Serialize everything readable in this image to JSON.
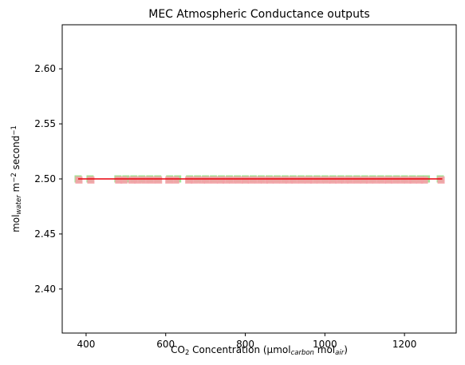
{
  "chart_data": {
    "type": "scatter",
    "title": "MEC Atmospheric Conductance outputs",
    "xlabel": {
      "parts": [
        {
          "t": "CO"
        },
        {
          "t": "2",
          "sub": true
        },
        {
          "t": " Concentration (µmol"
        },
        {
          "t": "carbon",
          "sub": true,
          "italic": true
        },
        {
          "t": " mol"
        },
        {
          "t": "air",
          "sub": true,
          "italic": true
        },
        {
          "t": ")"
        }
      ]
    },
    "ylabel": {
      "parts": [
        {
          "t": "mol"
        },
        {
          "t": "water",
          "sub": true,
          "italic": true
        },
        {
          "t": " m"
        },
        {
          "t": "−2",
          "sup": true
        },
        {
          "t": " second"
        },
        {
          "t": "−1",
          "sup": true
        }
      ]
    },
    "xlim": [
      340,
      1330
    ],
    "ylim": [
      2.36,
      2.64
    ],
    "xticks": [
      400,
      600,
      800,
      1000,
      1200
    ],
    "yticks": [
      2.4,
      2.45,
      2.5,
      2.55,
      2.6
    ],
    "ytick_labels": [
      "2.40",
      "2.45",
      "2.50",
      "2.55",
      "2.60"
    ],
    "grid": false,
    "series": [
      {
        "kind": "scatter",
        "marker": "square",
        "color": "#98e08a",
        "x": [
          380,
          410,
          480,
          500,
          520,
          540,
          560,
          580,
          610,
          630,
          660,
          680,
          700,
          720,
          740,
          760,
          780,
          800,
          820,
          840,
          860,
          880,
          900,
          920,
          940,
          960,
          980,
          1000,
          1020,
          1040,
          1060,
          1080,
          1100,
          1120,
          1140,
          1160,
          1180,
          1200,
          1220,
          1240,
          1255,
          1290
        ],
        "y": [
          2.5,
          2.5,
          2.5,
          2.5,
          2.5,
          2.5,
          2.5,
          2.5,
          2.5,
          2.5,
          2.5,
          2.5,
          2.5,
          2.5,
          2.5,
          2.5,
          2.5,
          2.5,
          2.5,
          2.5,
          2.5,
          2.5,
          2.5,
          2.5,
          2.5,
          2.5,
          2.5,
          2.5,
          2.5,
          2.5,
          2.5,
          2.5,
          2.5,
          2.5,
          2.5,
          2.5,
          2.5,
          2.5,
          2.5,
          2.5,
          2.5,
          2.5
        ]
      },
      {
        "kind": "scatter",
        "marker": "square",
        "color": "#f4a0a6",
        "x": [
          382,
          412,
          482,
          495,
          515,
          530,
          548,
          565,
          582,
          608,
          625,
          658,
          672,
          690,
          705,
          722,
          738,
          752,
          768,
          785,
          800,
          815,
          832,
          848,
          862,
          878,
          895,
          910,
          925,
          942,
          958,
          972,
          988,
          1005,
          1020,
          1035,
          1050,
          1065,
          1082,
          1098,
          1112,
          1128,
          1145,
          1160,
          1175,
          1192,
          1208,
          1222,
          1238,
          1250,
          1292
        ],
        "y": [
          2.499,
          2.499,
          2.499,
          2.499,
          2.499,
          2.499,
          2.499,
          2.499,
          2.499,
          2.499,
          2.499,
          2.499,
          2.499,
          2.499,
          2.499,
          2.499,
          2.499,
          2.499,
          2.499,
          2.499,
          2.499,
          2.499,
          2.499,
          2.499,
          2.499,
          2.499,
          2.499,
          2.499,
          2.499,
          2.499,
          2.499,
          2.499,
          2.499,
          2.499,
          2.499,
          2.499,
          2.499,
          2.499,
          2.499,
          2.499,
          2.499,
          2.499,
          2.499,
          2.499,
          2.499,
          2.499,
          2.499,
          2.499,
          2.499,
          2.499,
          2.499
        ]
      },
      {
        "kind": "line",
        "color": "#e8000b",
        "x": [
          380,
          1295
        ],
        "y": [
          2.5,
          2.5
        ]
      }
    ]
  }
}
